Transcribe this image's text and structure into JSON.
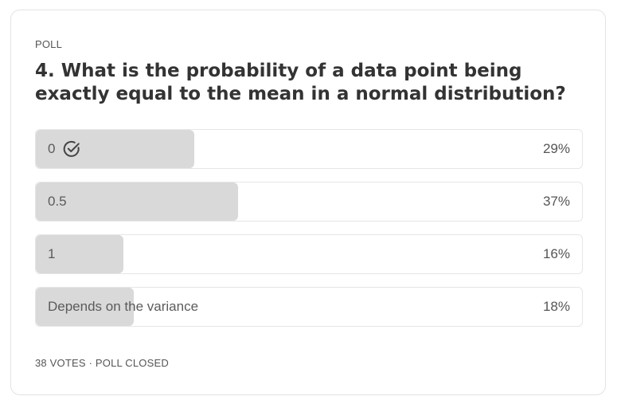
{
  "poll": {
    "label": "POLL",
    "question": "4. What is the probability of a data point being exactly equal to the mean in a normal distribution?",
    "options": [
      {
        "label": "0",
        "percent": "29%",
        "fraction": 0.29,
        "selected": true,
        "icon": "check-circle-icon"
      },
      {
        "label": "0.5",
        "percent": "37%",
        "fraction": 0.37,
        "selected": false
      },
      {
        "label": "1",
        "percent": "16%",
        "fraction": 0.16,
        "selected": false
      },
      {
        "label": "Depends on the variance",
        "percent": "18%",
        "fraction": 0.18,
        "selected": false
      }
    ],
    "votes": "38 VOTES",
    "separator": "·",
    "status": "POLL CLOSED"
  },
  "colors": {
    "fill": "#d9d9d9",
    "border": "#e6e6e6",
    "text": "#333333",
    "muted": "#555555"
  }
}
